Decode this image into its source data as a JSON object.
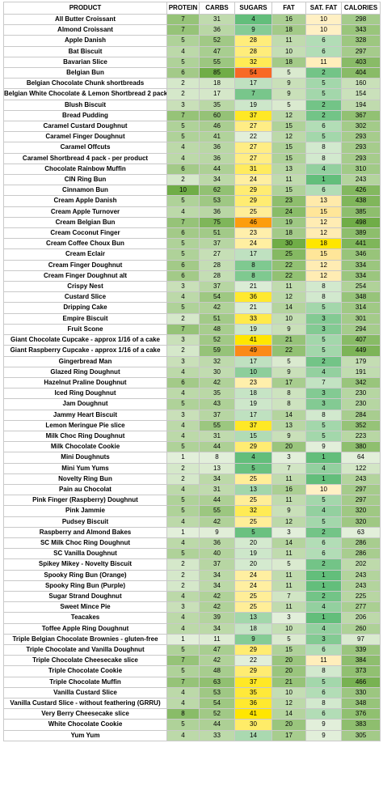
{
  "headers": [
    "PRODUCT",
    "PROTEIN",
    "CARBS",
    "SUGARS",
    "FAT",
    "SAT. FAT",
    "CALORIES"
  ],
  "rows": [
    [
      "All Butter Croissant",
      7,
      31,
      4,
      16,
      10,
      298
    ],
    [
      "Almond Croissant",
      7,
      36,
      9,
      18,
      10,
      343
    ],
    [
      "Apple Danish",
      5,
      52,
      28,
      11,
      6,
      328
    ],
    [
      "Bat Biscuit",
      4,
      47,
      28,
      10,
      6,
      297
    ],
    [
      "Bavarian Slice",
      5,
      55,
      32,
      18,
      11,
      403
    ],
    [
      "Belgian Bun",
      6,
      85,
      54,
      5,
      2,
      404
    ],
    [
      "Belgian Chocolate Chunk shortbreads",
      2,
      18,
      17,
      9,
      5,
      160
    ],
    [
      "Belgian White Chocolate & Lemon Shortbread 2 pack",
      2,
      17,
      7,
      9,
      5,
      154
    ],
    [
      "Blush Biscuit",
      3,
      35,
      19,
      5,
      2,
      194
    ],
    [
      "Bread Pudding",
      7,
      60,
      37,
      12,
      2,
      367
    ],
    [
      "Caramel Custard Doughnut",
      5,
      46,
      27,
      15,
      6,
      302
    ],
    [
      "Caramel Finger Doughnut",
      5,
      41,
      22,
      12,
      5,
      293
    ],
    [
      "Caramel Offcuts",
      4,
      36,
      27,
      15,
      8,
      293
    ],
    [
      "Caramel Shortbread 4 pack - per product",
      4,
      36,
      27,
      15,
      8,
      293
    ],
    [
      "Chocolate Rainbow Muffin",
      6,
      44,
      31,
      13,
      4,
      310
    ],
    [
      "CIN Ring Bun",
      2,
      34,
      24,
      11,
      1,
      243
    ],
    [
      "Cinnamon Bun",
      10,
      62,
      29,
      15,
      6,
      426
    ],
    [
      "Cream Apple Danish",
      5,
      53,
      29,
      23,
      13,
      438
    ],
    [
      "Cream Apple Turnover",
      4,
      36,
      25,
      24,
      15,
      385
    ],
    [
      "Cream Belgian Bun",
      7,
      75,
      46,
      19,
      12,
      498
    ],
    [
      "Cream Coconut Finger",
      6,
      51,
      23,
      18,
      12,
      389
    ],
    [
      "Cream Coffee Choux Bun",
      5,
      37,
      24,
      30,
      18,
      441
    ],
    [
      "Cream Eclair",
      5,
      27,
      17,
      25,
      15,
      346
    ],
    [
      "Cream Finger Doughnut",
      6,
      28,
      8,
      22,
      12,
      334
    ],
    [
      "Cream Finger Doughnut alt",
      6,
      28,
      8,
      22,
      12,
      334
    ],
    [
      "Crispy Nest",
      3,
      37,
      21,
      11,
      8,
      254
    ],
    [
      "Custard Slice",
      4,
      54,
      36,
      12,
      8,
      348
    ],
    [
      "Dripping Cake",
      5,
      42,
      21,
      14,
      5,
      314
    ],
    [
      "Empire Biscuit",
      2,
      51,
      33,
      10,
      3,
      301
    ],
    [
      "Fruit Scone",
      7,
      48,
      19,
      9,
      3,
      294
    ],
    [
      "Giant Chocolate Cupcake - approx 1/16 of a cake",
      3,
      52,
      41,
      21,
      5,
      407
    ],
    [
      "Giant Raspberry Cupcake - approx 1/16 of a cake",
      2,
      59,
      49,
      22,
      5,
      449
    ],
    [
      "Gingerbread Man",
      3,
      32,
      17,
      5,
      2,
      179
    ],
    [
      "Glazed Ring Doughnut",
      4,
      30,
      10,
      9,
      4,
      191
    ],
    [
      "Hazelnut Praline Doughnut",
      6,
      42,
      23,
      17,
      7,
      342
    ],
    [
      "Iced Ring Doughnut",
      4,
      35,
      18,
      8,
      3,
      230
    ],
    [
      "Jam Doughnut",
      5,
      43,
      19,
      8,
      3,
      230
    ],
    [
      "Jammy Heart Biscuit",
      3,
      37,
      17,
      14,
      8,
      284
    ],
    [
      "Lemon Meringue Pie slice",
      4,
      55,
      37,
      13,
      5,
      352
    ],
    [
      "Milk Choc Ring Doughnut",
      4,
      31,
      15,
      9,
      5,
      223
    ],
    [
      "Milk Chocolate Cookie",
      5,
      44,
      29,
      20,
      9,
      380
    ],
    [
      "Mini Doughnuts",
      1,
      8,
      4,
      3,
      1,
      64
    ],
    [
      "Mini Yum Yums",
      2,
      13,
      5,
      7,
      4,
      122
    ],
    [
      "Novelty Ring Bun",
      2,
      34,
      25,
      11,
      1,
      243
    ],
    [
      "Pain au Chocolat",
      4,
      31,
      13,
      16,
      10,
      297
    ],
    [
      "Pink Finger (Raspberry) Doughnut",
      5,
      44,
      25,
      11,
      5,
      297
    ],
    [
      "Pink Jammie",
      5,
      55,
      32,
      9,
      4,
      320
    ],
    [
      "Pudsey Biscuit",
      4,
      42,
      25,
      12,
      5,
      320
    ],
    [
      "Raspberry and Almond Bakes",
      1,
      9,
      5,
      3,
      2,
      63
    ],
    [
      "SC Milk Choc Ring Doughnut",
      4,
      36,
      20,
      14,
      6,
      286
    ],
    [
      "SC Vanilla Doughnut",
      5,
      40,
      19,
      11,
      6,
      286
    ],
    [
      "Spikey Mikey - Novelty Biscuit",
      2,
      37,
      20,
      5,
      2,
      202
    ],
    [
      "Spooky Ring Bun (Orange)",
      2,
      34,
      24,
      11,
      1,
      243
    ],
    [
      "Spooky Ring Bun (Purple)",
      2,
      34,
      24,
      11,
      1,
      243
    ],
    [
      "Sugar Strand Doughnut",
      4,
      42,
      25,
      7,
      2,
      225
    ],
    [
      "Sweet Mince Pie",
      3,
      42,
      25,
      11,
      4,
      277
    ],
    [
      "Teacakes",
      4,
      39,
      13,
      3,
      1,
      206
    ],
    [
      "Toffee Apple Ring Doughnut",
      4,
      34,
      18,
      10,
      4,
      260
    ],
    [
      "Triple Belgian Chocolate Brownies - gluten-free",
      1,
      11,
      9,
      5,
      3,
      97
    ],
    [
      "Triple Chocolate and Vanilla Doughnut",
      5,
      47,
      29,
      15,
      6,
      339
    ],
    [
      "Triple Chocolate Cheesecake slice",
      7,
      42,
      22,
      20,
      11,
      384
    ],
    [
      "Triple Chocolate Cookie",
      5,
      48,
      29,
      20,
      8,
      373
    ],
    [
      "Triple Chocolate Muffin",
      7,
      63,
      37,
      21,
      5,
      466
    ],
    [
      "Vanilla Custard Slice",
      4,
      53,
      35,
      10,
      6,
      330
    ],
    [
      "Vanilla Custard Slice - without feathering (GRRU)",
      4,
      54,
      36,
      12,
      8,
      348
    ],
    [
      "Very Berry Cheesecake slice",
      8,
      52,
      41,
      14,
      6,
      376
    ],
    [
      "White Chocolate Cookie",
      5,
      44,
      30,
      20,
      9,
      383
    ],
    [
      "Yum Yum",
      4,
      33,
      14,
      17,
      9,
      305
    ]
  ]
}
